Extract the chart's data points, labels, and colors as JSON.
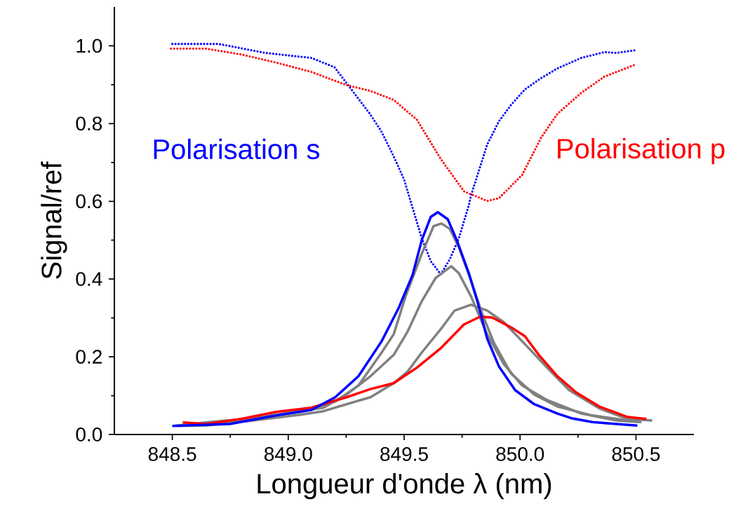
{
  "chart_data": {
    "type": "line",
    "xlabel": "Longueur d'onde λ (nm)",
    "ylabel": "Signal/ref",
    "xlim": [
      848.25,
      850.75
    ],
    "ylim": [
      0,
      1.1
    ],
    "xticks": [
      848.5,
      {
        "value": 849,
        "label": "849.0"
      },
      849.5,
      {
        "value": 850,
        "label": "850.0"
      },
      850.5
    ],
    "yticks": [
      {
        "value": 0,
        "label": "0.0"
      },
      0.2,
      0.4,
      0.6,
      0.8,
      {
        "value": 1,
        "label": "1.0"
      }
    ],
    "legend": false,
    "grid": false,
    "marker": "none",
    "series": [
      {
        "name": "Polarisation s",
        "color": "#0000ff",
        "line_style": "dotted",
        "x": [
          848.5,
          848.7,
          848.9,
          849.1,
          849.2,
          849.3,
          849.35,
          849.4,
          849.45,
          849.5,
          849.53,
          849.576,
          849.615,
          849.658,
          849.697,
          849.736,
          849.779,
          849.788,
          849.858,
          849.909,
          849.961,
          850.021,
          850.091,
          850.161,
          850.264,
          850.364,
          850.415,
          850.5
        ],
        "values": [
          1.005,
          1.005,
          0.982,
          0.969,
          0.945,
          0.866,
          0.827,
          0.782,
          0.722,
          0.656,
          0.596,
          0.505,
          0.446,
          0.412,
          0.451,
          0.505,
          0.59,
          0.614,
          0.746,
          0.806,
          0.848,
          0.888,
          0.917,
          0.942,
          0.969,
          0.984,
          0.982,
          0.989
        ]
      },
      {
        "name": "Polarisation p",
        "color": "#ff0000",
        "line_style": "dotted",
        "x": [
          848.494,
          848.645,
          848.797,
          848.948,
          849.1,
          849.252,
          849.355,
          849.455,
          849.555,
          849.658,
          849.758,
          849.858,
          849.909,
          850.009,
          850.091,
          850.161,
          850.264,
          850.364,
          850.494
        ],
        "values": [
          0.993,
          0.993,
          0.978,
          0.957,
          0.933,
          0.899,
          0.884,
          0.861,
          0.81,
          0.709,
          0.626,
          0.601,
          0.608,
          0.668,
          0.764,
          0.825,
          0.879,
          0.921,
          0.951
        ]
      },
      {
        "color": "#808080",
        "line_style": "solid",
        "x": [
          848.515,
          848.645,
          848.848,
          849.052,
          849.203,
          849.303,
          849.403,
          849.455,
          849.506,
          849.576,
          849.627,
          849.661,
          849.697,
          849.736,
          849.788,
          849.839,
          849.888,
          849.961,
          850.061,
          850.161,
          850.312,
          850.464,
          850.524
        ],
        "values": [
          0.023,
          0.031,
          0.042,
          0.058,
          0.085,
          0.126,
          0.211,
          0.258,
          0.355,
          0.465,
          0.536,
          0.543,
          0.529,
          0.482,
          0.397,
          0.307,
          0.235,
          0.157,
          0.103,
          0.072,
          0.049,
          0.036,
          0.032
        ]
      },
      {
        "color": "#808080",
        "line_style": "solid",
        "x": [
          848.545,
          848.748,
          848.948,
          849.152,
          849.252,
          849.355,
          849.455,
          849.515,
          849.576,
          849.636,
          849.703,
          849.736,
          849.788,
          849.858,
          849.93,
          850.009,
          850.112,
          850.264,
          850.415,
          850.515
        ],
        "values": [
          0.023,
          0.032,
          0.051,
          0.069,
          0.103,
          0.15,
          0.205,
          0.265,
          0.343,
          0.403,
          0.433,
          0.415,
          0.356,
          0.258,
          0.181,
          0.126,
          0.09,
          0.054,
          0.036,
          0.032
        ]
      },
      {
        "color": "#808080",
        "line_style": "solid",
        "x": [
          848.524,
          848.645,
          848.848,
          849.052,
          849.152,
          849.252,
          849.355,
          849.455,
          849.515,
          849.576,
          849.658,
          849.718,
          849.788,
          849.858,
          849.93,
          850.009,
          850.112,
          850.212,
          850.342,
          850.464,
          850.57
        ],
        "values": [
          0.022,
          0.023,
          0.036,
          0.051,
          0.06,
          0.078,
          0.096,
          0.132,
          0.162,
          0.211,
          0.271,
          0.319,
          0.334,
          0.319,
          0.289,
          0.24,
          0.175,
          0.114,
          0.067,
          0.04,
          0.036
        ]
      },
      {
        "color": "#ff0000",
        "line_style": "solid",
        "x": [
          848.545,
          848.645,
          848.797,
          848.948,
          849.1,
          849.252,
          849.355,
          849.455,
          849.555,
          849.658,
          849.758,
          849.827,
          849.879,
          849.961,
          850.021,
          850.082,
          850.161,
          850.242,
          850.342,
          850.464,
          850.545
        ],
        "values": [
          0.031,
          0.027,
          0.04,
          0.058,
          0.069,
          0.096,
          0.117,
          0.132,
          0.172,
          0.222,
          0.283,
          0.303,
          0.301,
          0.276,
          0.253,
          0.204,
          0.15,
          0.108,
          0.072,
          0.045,
          0.04
        ]
      },
      {
        "color": "#0000ff",
        "line_style": "solid",
        "x": [
          848.5,
          848.748,
          848.948,
          849.1,
          849.203,
          849.303,
          849.403,
          849.476,
          849.536,
          849.576,
          849.615,
          849.645,
          849.688,
          849.727,
          849.779,
          849.818,
          849.858,
          849.909,
          849.979,
          850.061,
          850.161,
          850.221,
          850.312,
          850.415,
          850.506
        ],
        "values": [
          0.022,
          0.027,
          0.049,
          0.063,
          0.096,
          0.15,
          0.24,
          0.325,
          0.41,
          0.5,
          0.56,
          0.572,
          0.554,
          0.5,
          0.415,
          0.338,
          0.247,
          0.175,
          0.114,
          0.078,
          0.054,
          0.042,
          0.032,
          0.027,
          0.023
        ]
      }
    ]
  }
}
